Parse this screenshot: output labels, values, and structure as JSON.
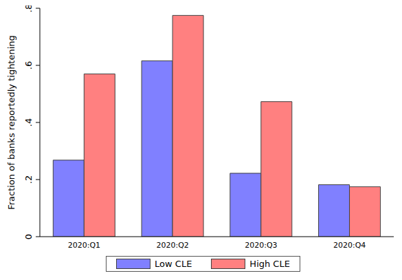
{
  "chart_data": {
    "type": "bar",
    "y_label": "Fraction of banks reportedly tightening",
    "categories": [
      "2020:Q1",
      "2020:Q2",
      "2020:Q3",
      "2020:Q4"
    ],
    "series": [
      {
        "name": "Low CLE",
        "color": "#8080ff",
        "values": [
          0.268,
          0.616,
          0.222,
          0.182
        ]
      },
      {
        "name": "High CLE",
        "color": "#ff8080",
        "values": [
          0.57,
          0.775,
          0.473,
          0.175
        ]
      }
    ],
    "ylim": [
      0,
      0.8
    ],
    "yticks": [
      0,
      {
        "value": 0.2,
        "label": ".2"
      },
      {
        "value": 0.4,
        "label": ".4"
      },
      {
        "value": 0.6,
        "label": ".6"
      },
      {
        "value": 0.8,
        "label": ".8"
      }
    ],
    "grid": false,
    "legend": "bottom"
  }
}
